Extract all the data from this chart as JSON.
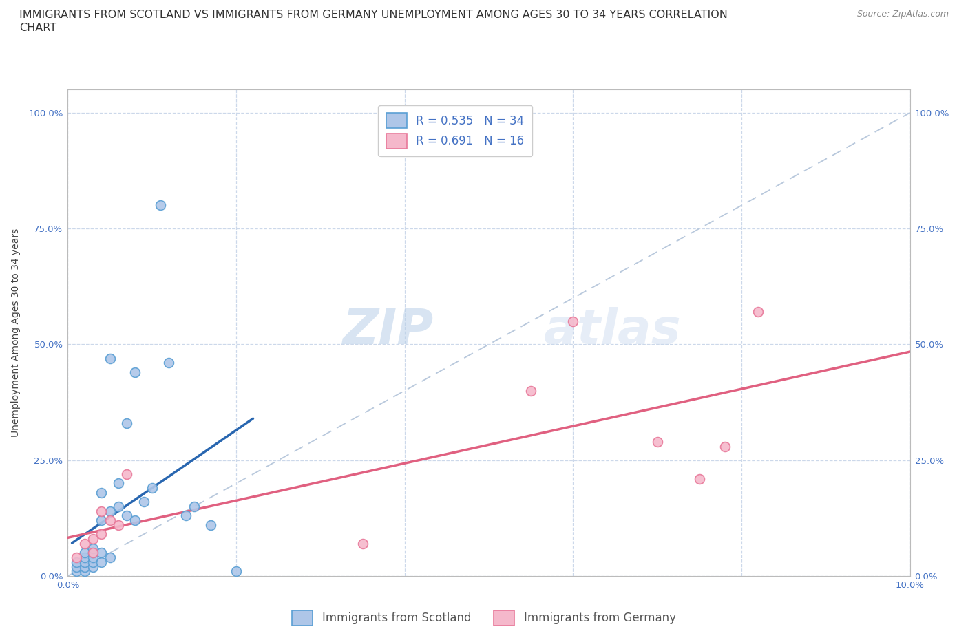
{
  "title_line1": "IMMIGRANTS FROM SCOTLAND VS IMMIGRANTS FROM GERMANY UNEMPLOYMENT AMONG AGES 30 TO 34 YEARS CORRELATION",
  "title_line2": "CHART",
  "source": "Source: ZipAtlas.com",
  "ylabel": "Unemployment Among Ages 30 to 34 years",
  "xlim": [
    0.0,
    0.1
  ],
  "ylim": [
    0.0,
    1.05
  ],
  "ytick_positions": [
    0.0,
    0.25,
    0.5,
    0.75,
    1.0
  ],
  "ytick_labels": [
    "0.0%",
    "25.0%",
    "50.0%",
    "75.0%",
    "100.0%"
  ],
  "xtick_positions": [
    0.0,
    0.02,
    0.04,
    0.06,
    0.08,
    0.1
  ],
  "xtick_labels": [
    "0.0%",
    "",
    "",
    "",
    "",
    "10.0%"
  ],
  "scotland_color": "#aec6e8",
  "germany_color": "#f5b8cb",
  "scotland_edge": "#5a9fd4",
  "germany_edge": "#e8799a",
  "line_scotland_color": "#2866b0",
  "line_germany_color": "#e06080",
  "diagonal_color": "#b8c8dc",
  "r_scotland": 0.535,
  "n_scotland": 34,
  "r_germany": 0.691,
  "n_germany": 16,
  "watermark_zip": "ZIP",
  "watermark_atlas": "atlas",
  "scotland_x": [
    0.001,
    0.001,
    0.001,
    0.002,
    0.002,
    0.002,
    0.002,
    0.002,
    0.003,
    0.003,
    0.003,
    0.003,
    0.003,
    0.004,
    0.004,
    0.004,
    0.004,
    0.005,
    0.005,
    0.005,
    0.006,
    0.006,
    0.007,
    0.007,
    0.008,
    0.008,
    0.009,
    0.01,
    0.011,
    0.012,
    0.014,
    0.015,
    0.017,
    0.02
  ],
  "scotland_y": [
    0.01,
    0.02,
    0.03,
    0.01,
    0.02,
    0.03,
    0.04,
    0.05,
    0.02,
    0.03,
    0.04,
    0.05,
    0.06,
    0.03,
    0.05,
    0.12,
    0.18,
    0.04,
    0.14,
    0.47,
    0.15,
    0.2,
    0.13,
    0.33,
    0.12,
    0.44,
    0.16,
    0.19,
    0.8,
    0.46,
    0.13,
    0.15,
    0.11,
    0.01
  ],
  "germany_x": [
    0.001,
    0.002,
    0.003,
    0.003,
    0.004,
    0.004,
    0.005,
    0.006,
    0.007,
    0.035,
    0.055,
    0.06,
    0.07,
    0.075,
    0.078,
    0.082
  ],
  "germany_y": [
    0.04,
    0.07,
    0.05,
    0.08,
    0.09,
    0.14,
    0.12,
    0.11,
    0.22,
    0.07,
    0.4,
    0.55,
    0.29,
    0.21,
    0.28,
    0.57
  ],
  "title_fontsize": 11.5,
  "axis_label_fontsize": 10,
  "tick_fontsize": 9.5,
  "legend_fontsize": 12,
  "source_fontsize": 9
}
